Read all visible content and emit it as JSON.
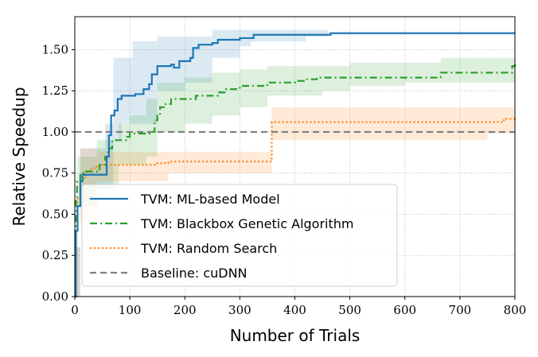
{
  "chart_data": {
    "type": "line",
    "xlabel": "Number of Trials",
    "ylabel": "Relative Speedup",
    "xlim": [
      0,
      800
    ],
    "ylim": [
      0,
      1.7
    ],
    "xticks": [
      0,
      100,
      200,
      300,
      400,
      500,
      600,
      700,
      800
    ],
    "yticks": [
      0.0,
      0.25,
      0.5,
      0.75,
      1.0,
      1.25,
      1.5
    ],
    "ytick_labels": [
      "0.00",
      "0.25",
      "0.50",
      "0.75",
      "1.00",
      "1.25",
      "1.50"
    ],
    "grid": true,
    "legend_position": "lower-left",
    "series": [
      {
        "name": "TVM: ML-based Model",
        "color": "#1f77b4",
        "style": "solid",
        "points": [
          [
            0,
            0
          ],
          [
            2,
            0.4
          ],
          [
            5,
            0.55
          ],
          [
            10,
            0.7
          ],
          [
            14,
            0.74
          ],
          [
            55,
            0.74
          ],
          [
            58,
            0.85
          ],
          [
            62,
            0.98
          ],
          [
            66,
            1.1
          ],
          [
            72,
            1.13
          ],
          [
            78,
            1.2
          ],
          [
            85,
            1.22
          ],
          [
            105,
            1.22
          ],
          [
            110,
            1.23
          ],
          [
            125,
            1.26
          ],
          [
            135,
            1.29
          ],
          [
            140,
            1.35
          ],
          [
            150,
            1.4
          ],
          [
            175,
            1.41
          ],
          [
            180,
            1.39
          ],
          [
            190,
            1.43
          ],
          [
            210,
            1.45
          ],
          [
            215,
            1.51
          ],
          [
            225,
            1.53
          ],
          [
            250,
            1.54
          ],
          [
            260,
            1.56
          ],
          [
            290,
            1.56
          ],
          [
            300,
            1.57
          ],
          [
            320,
            1.57
          ],
          [
            325,
            1.59
          ],
          [
            460,
            1.59
          ],
          [
            465,
            1.6
          ],
          [
            800,
            1.6
          ]
        ],
        "band": [
          [
            0,
            0,
            0.3
          ],
          [
            10,
            0.55,
            0.9
          ],
          [
            40,
            0.65,
            0.9
          ],
          [
            55,
            0.65,
            1.05
          ],
          [
            70,
            0.95,
            1.45
          ],
          [
            85,
            1.05,
            1.45
          ],
          [
            105,
            1.05,
            1.55
          ],
          [
            150,
            1.25,
            1.58
          ],
          [
            200,
            1.3,
            1.58
          ],
          [
            250,
            1.45,
            1.62
          ],
          [
            300,
            1.52,
            1.62
          ],
          [
            320,
            1.55,
            1.62
          ],
          [
            420,
            1.58,
            1.62
          ],
          [
            460,
            1.59,
            1.6
          ],
          [
            800,
            1.59,
            1.6
          ]
        ]
      },
      {
        "name": "TVM: Blackbox Genetic Algorithm",
        "color": "#2ca02c",
        "style": "dashdot",
        "points": [
          [
            0,
            0
          ],
          [
            2,
            0.58
          ],
          [
            4,
            0.7
          ],
          [
            10,
            0.75
          ],
          [
            20,
            0.76
          ],
          [
            45,
            0.8
          ],
          [
            55,
            0.85
          ],
          [
            60,
            0.9
          ],
          [
            68,
            0.95
          ],
          [
            95,
            0.97
          ],
          [
            100,
            0.99
          ],
          [
            140,
            1.0
          ],
          [
            145,
            1.07
          ],
          [
            150,
            1.1
          ],
          [
            155,
            1.15
          ],
          [
            165,
            1.17
          ],
          [
            175,
            1.2
          ],
          [
            215,
            1.2
          ],
          [
            220,
            1.22
          ],
          [
            240,
            1.22
          ],
          [
            260,
            1.24
          ],
          [
            275,
            1.26
          ],
          [
            300,
            1.28
          ],
          [
            345,
            1.28
          ],
          [
            350,
            1.3
          ],
          [
            400,
            1.31
          ],
          [
            420,
            1.32
          ],
          [
            440,
            1.33
          ],
          [
            660,
            1.33
          ],
          [
            665,
            1.36
          ],
          [
            790,
            1.36
          ],
          [
            795,
            1.4
          ],
          [
            800,
            1.41
          ]
        ],
        "band": [
          [
            0,
            0,
            0.4
          ],
          [
            5,
            0.55,
            0.85
          ],
          [
            40,
            0.65,
            0.95
          ],
          [
            80,
            0.8,
            1.05
          ],
          [
            100,
            0.8,
            1.1
          ],
          [
            130,
            0.85,
            1.2
          ],
          [
            150,
            1.0,
            1.3
          ],
          [
            200,
            1.05,
            1.33
          ],
          [
            250,
            1.1,
            1.36
          ],
          [
            300,
            1.15,
            1.38
          ],
          [
            350,
            1.22,
            1.4
          ],
          [
            400,
            1.22,
            1.4
          ],
          [
            450,
            1.25,
            1.4
          ],
          [
            500,
            1.28,
            1.42
          ],
          [
            600,
            1.3,
            1.42
          ],
          [
            665,
            1.3,
            1.45
          ],
          [
            800,
            1.35,
            1.45
          ]
        ]
      },
      {
        "name": "TVM: Random Search",
        "color": "#ff7f0e",
        "style": "dotted",
        "points": [
          [
            0,
            0
          ],
          [
            2,
            0.4
          ],
          [
            5,
            0.6
          ],
          [
            10,
            0.72
          ],
          [
            20,
            0.76
          ],
          [
            30,
            0.78
          ],
          [
            40,
            0.79
          ],
          [
            45,
            0.8
          ],
          [
            140,
            0.8
          ],
          [
            145,
            0.81
          ],
          [
            165,
            0.81
          ],
          [
            170,
            0.82
          ],
          [
            355,
            0.82
          ],
          [
            358,
            1.06
          ],
          [
            770,
            1.06
          ],
          [
            780,
            1.08
          ],
          [
            800,
            1.09
          ]
        ],
        "band": [
          [
            0,
            0,
            0.3
          ],
          [
            10,
            0.45,
            0.9
          ],
          [
            40,
            0.7,
            0.88
          ],
          [
            140,
            0.7,
            0.88
          ],
          [
            170,
            0.75,
            0.88
          ],
          [
            355,
            0.75,
            0.88
          ],
          [
            358,
            0.95,
            1.15
          ],
          [
            740,
            0.95,
            1.15
          ],
          [
            750,
            0.99,
            1.15
          ],
          [
            800,
            0.99,
            1.15
          ]
        ]
      },
      {
        "name": "Baseline: cuDNN",
        "color": "#7f7f7f",
        "style": "dashed",
        "points": [
          [
            0,
            1.0
          ],
          [
            800,
            1.0
          ]
        ]
      }
    ]
  }
}
